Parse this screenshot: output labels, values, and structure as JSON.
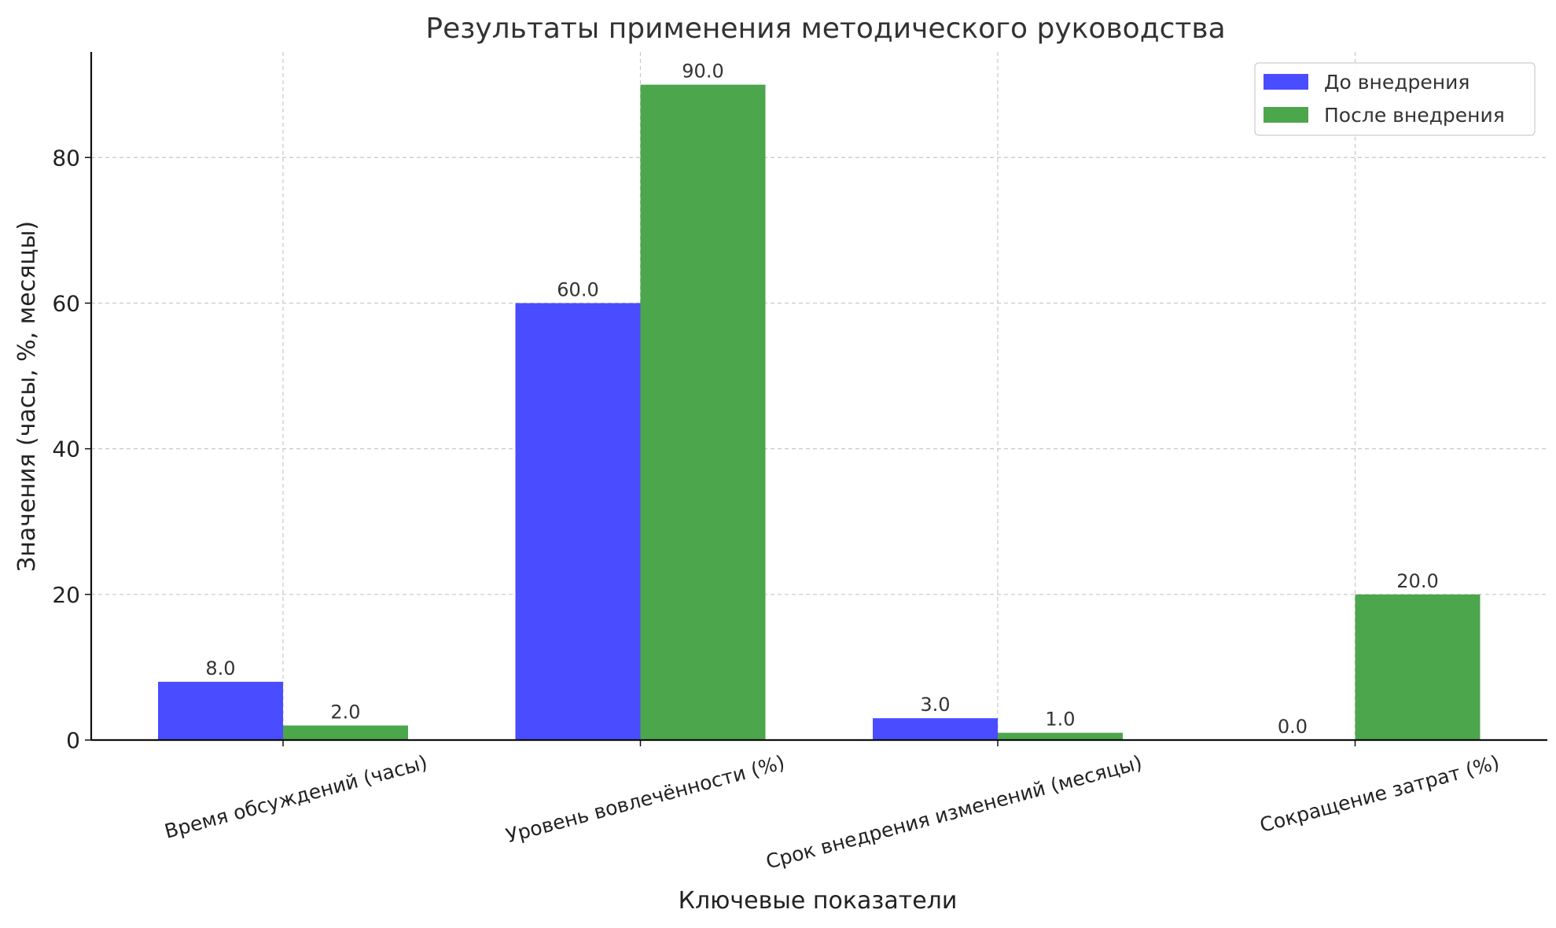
{
  "chart_data": {
    "type": "bar",
    "title": "Результаты применения методического руководства",
    "xlabel": "Ключевые показатели",
    "ylabel": "Значения (часы, %, месяцы)",
    "categories": [
      "Время обсуждений (часы)",
      "Уровень вовлечённости (%)",
      "Срок внедрения изменений (месяцы)",
      "Сокращение затрат (%)"
    ],
    "series": [
      {
        "name": "До внедрения",
        "values": [
          8.0,
          60.0,
          3.0,
          0.0
        ],
        "color": "#4a4cff"
      },
      {
        "name": "После внедрения",
        "values": [
          2.0,
          90.0,
          1.0,
          20.0
        ],
        "color": "#4ca64c"
      }
    ],
    "data_labels": [
      [
        "8.0",
        "60.0",
        "3.0",
        "0.0"
      ],
      [
        "2.0",
        "90.0",
        "1.0",
        "20.0"
      ]
    ],
    "ylim": [
      0,
      94.5
    ],
    "yticks": [
      0,
      20,
      40,
      60,
      80
    ],
    "ytick_labels": [
      "0",
      "20",
      "40",
      "60",
      "80"
    ],
    "grid": true,
    "legend_position": "top-right"
  }
}
